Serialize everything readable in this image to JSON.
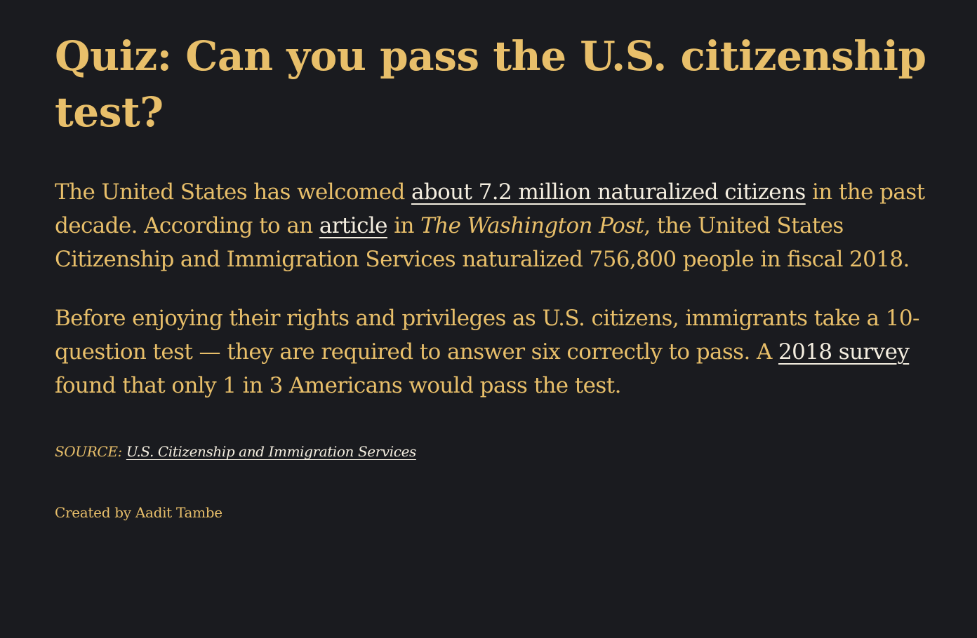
{
  "title": "Quiz: Can you pass the U.S. citizenship test?",
  "intro": {
    "part1": "The United States has welcomed ",
    "link1": "about 7.2 million naturalized citizens",
    "part2": " in the past decade. According to an ",
    "link2": "article",
    "part3": " in ",
    "publication": "The Washington Post",
    "part4": ", the United States Citizenship and Immigration Services naturalized 756,800 people in fiscal 2018."
  },
  "second": {
    "part1": "Before enjoying their rights and privileges as U.S. citizens, immigrants take a 10-question test — they are required to answer six correctly to pass. A ",
    "link": "2018 survey",
    "part2": " found that only 1 in 3 Americans would pass the test."
  },
  "source": {
    "label": "SOURCE: ",
    "link": "U.S. Citizenship and Immigration Services"
  },
  "credit": "Created by Aadit Tambe",
  "colors": {
    "background": "#1a1b1f",
    "text": "#e8bf6a",
    "link": "#f4eee0"
  }
}
